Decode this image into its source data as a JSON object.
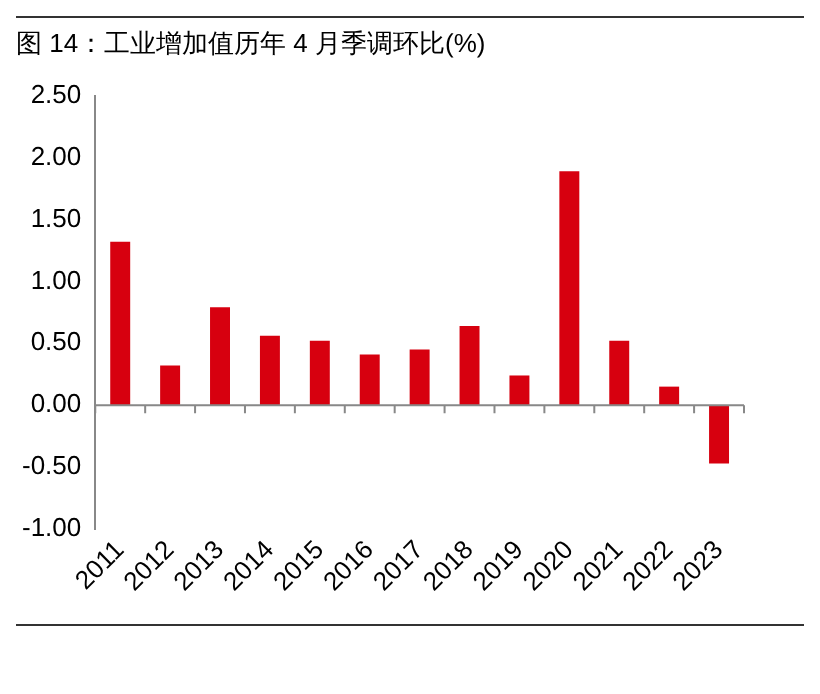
{
  "chart_data": {
    "type": "bar",
    "title": "图 14：工业增加值历年 4 月季调环比(%)",
    "categories": [
      "2011",
      "2012",
      "2013",
      "2014",
      "2015",
      "2016",
      "2017",
      "2018",
      "2019",
      "2020",
      "2021",
      "2022",
      "2023"
    ],
    "values": [
      1.32,
      0.32,
      0.79,
      0.56,
      0.52,
      0.41,
      0.45,
      0.64,
      0.24,
      1.89,
      0.52,
      0.15,
      -0.47
    ],
    "color": "#d7000f",
    "ylim": [
      -1,
      2.5
    ],
    "yticks": [
      {
        "value": -1,
        "label": "-1.00"
      },
      {
        "value": -0.5,
        "label": "-0.50"
      },
      {
        "value": 0,
        "label": "0.00"
      },
      {
        "value": 0.5,
        "label": "0.50"
      },
      {
        "value": 1,
        "label": "1.00"
      },
      {
        "value": 1.5,
        "label": "1.50"
      },
      {
        "value": 2,
        "label": "2.00"
      },
      {
        "value": 2.5,
        "label": "2.50"
      }
    ],
    "legend": false
  }
}
